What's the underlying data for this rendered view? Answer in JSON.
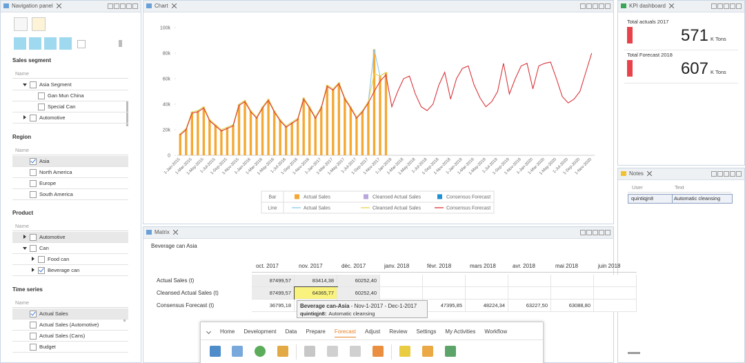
{
  "nav": {
    "title": "Navigation panel",
    "sections": [
      {
        "title": "Sales segment",
        "column": "Name",
        "items": [
          {
            "label": "Asia Segment",
            "expander": "open",
            "checked": false
          },
          {
            "label": "Gan Mun China",
            "checked": false
          },
          {
            "label": "Special Can",
            "checked": false
          },
          {
            "label": "Automotive",
            "expander": "closed",
            "checked": false
          }
        ]
      },
      {
        "title": "Region",
        "column": "Name",
        "items": [
          {
            "label": "Asia",
            "checked": true,
            "selected": true
          },
          {
            "label": "North America",
            "checked": false
          },
          {
            "label": "Europe",
            "checked": false
          },
          {
            "label": "South America",
            "checked": false
          }
        ]
      },
      {
        "title": "Product",
        "column": "Name",
        "items": [
          {
            "label": "Automotive",
            "expander": "closed",
            "checked": false,
            "selected": true
          },
          {
            "label": "Can",
            "expander": "open",
            "checked": false
          },
          {
            "label": "Food can",
            "expander": "closed",
            "checked": false
          },
          {
            "label": "Beverage can",
            "expander": "closed",
            "checked": true
          }
        ]
      },
      {
        "title": "Time series",
        "column": "Name",
        "items": [
          {
            "label": "Actual Sales",
            "checked": true,
            "selected": true
          },
          {
            "label": "Actual Sales (Automotive)",
            "checked": false
          },
          {
            "label": "Actual Sales (Cans)",
            "checked": false
          },
          {
            "label": "Budget",
            "checked": false
          }
        ]
      }
    ]
  },
  "chart_panel": {
    "title": "Chart"
  },
  "chart_data": {
    "type": "bar",
    "categories": [
      "1-Jan-2015",
      null,
      "1-Mar-2015",
      null,
      "1-May-2015",
      null,
      "1-Jul-2015",
      null,
      "1-Sep-2015",
      null,
      "1-Nov-2015",
      null,
      "1-Jan-2016",
      null,
      "1-Mar-2016",
      null,
      "1-May-2016",
      null,
      "1-Jul-2016",
      null,
      "1-Sep-2016",
      null,
      "1-Nov-2016",
      null,
      "1-Jan-2017",
      null,
      "1-Mar-2017",
      null,
      "1-May-2017",
      null,
      "1-Jul-2017",
      null,
      "1-Sep-2017",
      null,
      "1-Nov-2017",
      null,
      "1-Jan-2018",
      null,
      "1-Mar-2018",
      null,
      "1-May-2018",
      null,
      "1-Jul-2018",
      null,
      "1-Sep-2018",
      null,
      "1-Nov-2018",
      null,
      "1-Jan-2019",
      null,
      "1-Mar-2019",
      null,
      "1-May-2019",
      null,
      "1-Jul-2019",
      null,
      "1-Sep-2019",
      null,
      "1-Nov-2019",
      null,
      "1-Jan-2020",
      null,
      "1-Mar-2020",
      null,
      "1-May-2020",
      null,
      "1-Jul-2020",
      null,
      "1-Sep-2020",
      null,
      "1-Nov-2020"
    ],
    "ylim": [
      0,
      100000
    ],
    "yticks": [
      0,
      {
        "value": 20000,
        "label": "20k"
      },
      {
        "value": 40000,
        "label": "40k"
      },
      {
        "value": 60000,
        "label": "60k"
      },
      {
        "value": 80000,
        "label": "80k"
      },
      {
        "value": 100000,
        "label": "100k"
      }
    ],
    "grid": false,
    "legend_groups": [
      "Bar",
      "Line"
    ],
    "series": [
      {
        "name": "Actual Sales",
        "type": "bar",
        "color": "#f5a833",
        "values": [
          17000,
          21000,
          34000,
          35000,
          38000,
          28000,
          24000,
          20000,
          22000,
          24000,
          40000,
          43000,
          35000,
          30000,
          38000,
          44000,
          35000,
          28000,
          23000,
          26000,
          29000,
          45000,
          38000,
          30000,
          38000,
          55000,
          52000,
          57000,
          45000,
          38000,
          30000,
          35000,
          42000,
          83000,
          62000,
          65000,
          null,
          null,
          null,
          null,
          null,
          null,
          null,
          null,
          null,
          null,
          null,
          null,
          null,
          null,
          null,
          null,
          null,
          null,
          null,
          null,
          null,
          null,
          null,
          null,
          null,
          null,
          null,
          null,
          null,
          null,
          null,
          null,
          null,
          null,
          null
        ]
      },
      {
        "name": "Cleansed Actual Sales",
        "type": "bar",
        "color": "#b9a6dc",
        "values": [
          null,
          null,
          null,
          null,
          null,
          null,
          null,
          null,
          null,
          null,
          null,
          null,
          null,
          null,
          null,
          null,
          null,
          null,
          null,
          null,
          null,
          null,
          null,
          null,
          null,
          null,
          null,
          null,
          null,
          null,
          null,
          null,
          null,
          null,
          null,
          null,
          null,
          null,
          null,
          null,
          null,
          null,
          null,
          null,
          null,
          null,
          null,
          null,
          null,
          null,
          null,
          null,
          null,
          null,
          null,
          null,
          null,
          null,
          null,
          null,
          null,
          null,
          null,
          null,
          null,
          null,
          null,
          null,
          null,
          null,
          null
        ]
      },
      {
        "name": "Consensus Forecast",
        "type": "bar",
        "color": "#1f8fd6",
        "values": [
          null,
          null,
          null,
          null,
          null,
          null,
          null,
          null,
          null,
          null,
          null,
          null,
          null,
          null,
          null,
          null,
          null,
          null,
          null,
          null,
          null,
          null,
          null,
          null,
          null,
          null,
          null,
          null,
          null,
          null,
          null,
          null,
          null,
          null,
          null,
          null,
          null,
          null,
          null,
          null,
          null,
          null,
          null,
          null,
          null,
          null,
          null,
          null,
          null,
          null,
          null,
          null,
          null,
          null,
          null,
          null,
          null,
          null,
          null,
          null,
          null,
          null,
          null,
          null,
          null,
          null,
          null,
          null,
          null,
          null,
          null
        ]
      },
      {
        "name": "Actual Sales",
        "type": "line",
        "color": "#8cc8ee",
        "values": [
          17000,
          21000,
          34000,
          35000,
          38000,
          28000,
          24000,
          20000,
          22000,
          24000,
          40000,
          43000,
          35000,
          30000,
          38000,
          44000,
          35000,
          28000,
          23000,
          26000,
          29000,
          45000,
          38000,
          30000,
          38000,
          55000,
          52000,
          57000,
          45000,
          38000,
          30000,
          35000,
          42000,
          83000,
          62000,
          65000,
          null,
          null,
          null,
          null,
          null,
          null,
          null,
          null,
          null,
          null,
          null,
          null,
          null,
          null,
          null,
          null,
          null,
          null,
          null,
          null,
          null,
          null,
          null,
          null,
          null,
          null,
          null,
          null,
          null,
          null,
          null,
          null,
          null,
          null,
          null
        ]
      },
      {
        "name": "Cleansed Actual Sales",
        "type": "line",
        "color": "#e8d44a",
        "values": [
          17000,
          21000,
          34000,
          35000,
          38000,
          28000,
          24000,
          20000,
          22000,
          24000,
          40000,
          43000,
          35000,
          30000,
          38000,
          44000,
          35000,
          28000,
          23000,
          26000,
          29000,
          45000,
          38000,
          30000,
          38000,
          55000,
          52000,
          57000,
          45000,
          38000,
          30000,
          35000,
          42000,
          64000,
          62000,
          65000,
          null,
          null,
          null,
          null,
          null,
          null,
          null,
          null,
          null,
          null,
          null,
          null,
          null,
          null,
          null,
          null,
          null,
          null,
          null,
          null,
          null,
          null,
          null,
          null,
          null,
          null,
          null,
          null,
          null,
          null,
          null,
          null,
          null,
          null,
          null
        ]
      },
      {
        "name": "Consensus Forecast",
        "type": "line",
        "color": "#d9343a",
        "values": [
          16000,
          20000,
          33000,
          34000,
          37000,
          27000,
          23000,
          19000,
          21000,
          23000,
          39000,
          42000,
          34000,
          29000,
          37000,
          43000,
          34000,
          27000,
          22000,
          25000,
          28000,
          44000,
          37000,
          29000,
          37000,
          54000,
          51000,
          56000,
          44000,
          37000,
          29000,
          34000,
          41000,
          50000,
          58000,
          63000,
          38000,
          50000,
          60000,
          62000,
          48000,
          38000,
          35000,
          40000,
          55000,
          65000,
          44000,
          60000,
          68000,
          70000,
          55000,
          45000,
          38000,
          42000,
          50000,
          72000,
          48000,
          60000,
          70000,
          72000,
          52000,
          70000,
          72000,
          73000,
          60000,
          46000,
          41000,
          44000,
          50000,
          65000,
          80000
        ]
      }
    ]
  },
  "kpi": {
    "title": "KPI dashboard",
    "items": [
      {
        "label": "Total actuals 2017",
        "value": 571,
        "unit": "K Tons"
      },
      {
        "label": "Total Forecast 2018",
        "value": 607,
        "unit": "K Tons"
      }
    ]
  },
  "notes": {
    "title": "Notes",
    "columns": [
      "User",
      "Text"
    ],
    "rows": [
      [
        "quintiqjn8",
        "Automatic cleansing"
      ]
    ]
  },
  "matrix": {
    "title": "Matrix",
    "subtitle": "Beverage can Asia",
    "columns": [
      "oct. 2017",
      "nov. 2017",
      "déc. 2017",
      "janv. 2018",
      "févr. 2018",
      "mars 2018",
      "avr. 2018",
      "mai 2018",
      "juin 2018"
    ],
    "rows": [
      {
        "label": "Actual Sales (t)",
        "cells": [
          "87499,57",
          "83414,38",
          "60252,40",
          null,
          null,
          null,
          null,
          null,
          null
        ]
      },
      {
        "label": "Cleansed Actual Sales (t)",
        "cells": [
          "87499,57",
          "64365,77",
          "60252,40",
          null,
          null,
          null,
          null,
          null,
          null
        ]
      },
      {
        "label": "Consensus Forecast (t)",
        "cells": [
          "36795,18",
          null,
          null,
          null,
          "47395,85",
          "48224,34",
          "63227,50",
          "63088,80",
          null
        ]
      }
    ],
    "tooltip": {
      "title": "Beverage can-Asia",
      "range": "- Nov-1-2017 - Dec-1-2017",
      "user": "quintiqjn8:",
      "note": "Automatic cleansing"
    }
  },
  "toolbar": {
    "tabs": [
      "Home",
      "Development",
      "Data",
      "Prepare",
      "Forecast",
      "Adjust",
      "Review",
      "Settings",
      "My Activities",
      "Workflow"
    ],
    "active": 4
  }
}
